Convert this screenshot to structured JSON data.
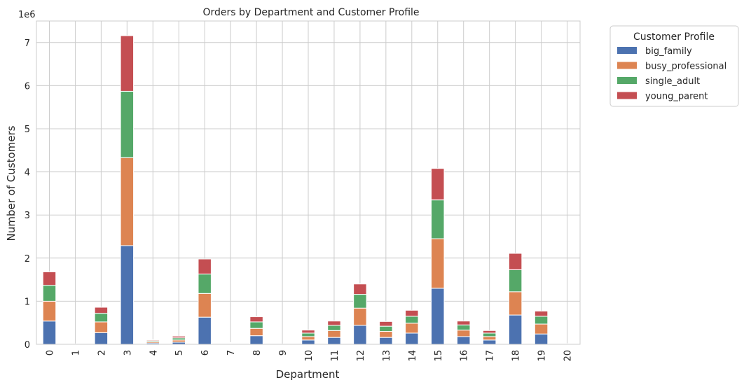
{
  "chart_data": {
    "type": "bar",
    "stacked": true,
    "title": "Orders by Department and Customer Profile",
    "xlabel": "Department",
    "ylabel": "Number of Customers",
    "y_offset_label": "1e6",
    "y_scale": 1000000,
    "ylim": [
      0,
      7500000
    ],
    "yticks": [
      0,
      1,
      2,
      3,
      4,
      5,
      6,
      7
    ],
    "grid": true,
    "legend_title": "Customer Profile",
    "legend_position": "outside-top-right",
    "categories": [
      "0",
      "1",
      "2",
      "3",
      "4",
      "5",
      "6",
      "7",
      "8",
      "9",
      "10",
      "11",
      "12",
      "13",
      "14",
      "15",
      "16",
      "17",
      "18",
      "19",
      "20"
    ],
    "series": [
      {
        "name": "big_family",
        "color": "#4c72b0",
        "values": [
          540000,
          3000,
          270000,
          2290000,
          30000,
          50000,
          630000,
          12000,
          200000,
          2000,
          100000,
          160000,
          440000,
          160000,
          260000,
          1300000,
          180000,
          100000,
          680000,
          240000,
          4000
        ]
      },
      {
        "name": "busy_professional",
        "color": "#dd8452",
        "values": [
          460000,
          3000,
          250000,
          2040000,
          30000,
          50000,
          550000,
          12000,
          170000,
          2000,
          80000,
          160000,
          400000,
          140000,
          230000,
          1150000,
          150000,
          80000,
          540000,
          230000,
          4000
        ]
      },
      {
        "name": "single_adult",
        "color": "#55a868",
        "values": [
          370000,
          2000,
          200000,
          1540000,
          25000,
          50000,
          450000,
          10000,
          150000,
          2000,
          80000,
          120000,
          320000,
          120000,
          160000,
          900000,
          120000,
          80000,
          510000,
          180000,
          3000
        ]
      },
      {
        "name": "young_parent",
        "color": "#c44e52",
        "values": [
          310000,
          2000,
          140000,
          1290000,
          20000,
          40000,
          350000,
          8000,
          120000,
          1000,
          70000,
          100000,
          240000,
          110000,
          140000,
          730000,
          90000,
          60000,
          380000,
          120000,
          3000
        ]
      }
    ]
  }
}
